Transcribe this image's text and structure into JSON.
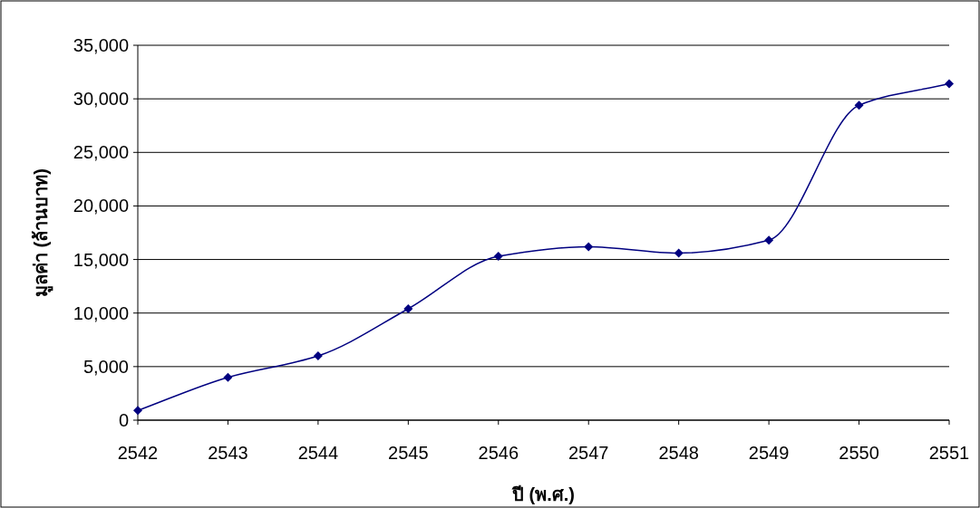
{
  "chart_data": {
    "type": "line",
    "xlabel": "ปี (พ.ศ.)",
    "ylabel": "มูลค่า (ล้านบาท)",
    "categories": [
      "2542",
      "2543",
      "2544",
      "2545",
      "2546",
      "2547",
      "2548",
      "2549",
      "2550",
      "2551"
    ],
    "series": [
      {
        "color": "#000080",
        "values": [
          900,
          4000,
          6000,
          10400,
          15300,
          16200,
          15600,
          16800,
          29400,
          31400
        ]
      }
    ],
    "ylim": [
      0,
      35000
    ],
    "yticks": [
      {
        "value": 0,
        "label": "0"
      },
      {
        "value": 5000,
        "label": "5,000"
      },
      {
        "value": 10000,
        "label": "10,000"
      },
      {
        "value": 15000,
        "label": "15,000"
      },
      {
        "value": 20000,
        "label": "20,000"
      },
      {
        "value": 25000,
        "label": "25,000"
      },
      {
        "value": 30000,
        "label": "30,000"
      },
      {
        "value": 35000,
        "label": "35,000"
      }
    ],
    "grid": "y",
    "marker": "diamond",
    "line_style": "solid"
  }
}
